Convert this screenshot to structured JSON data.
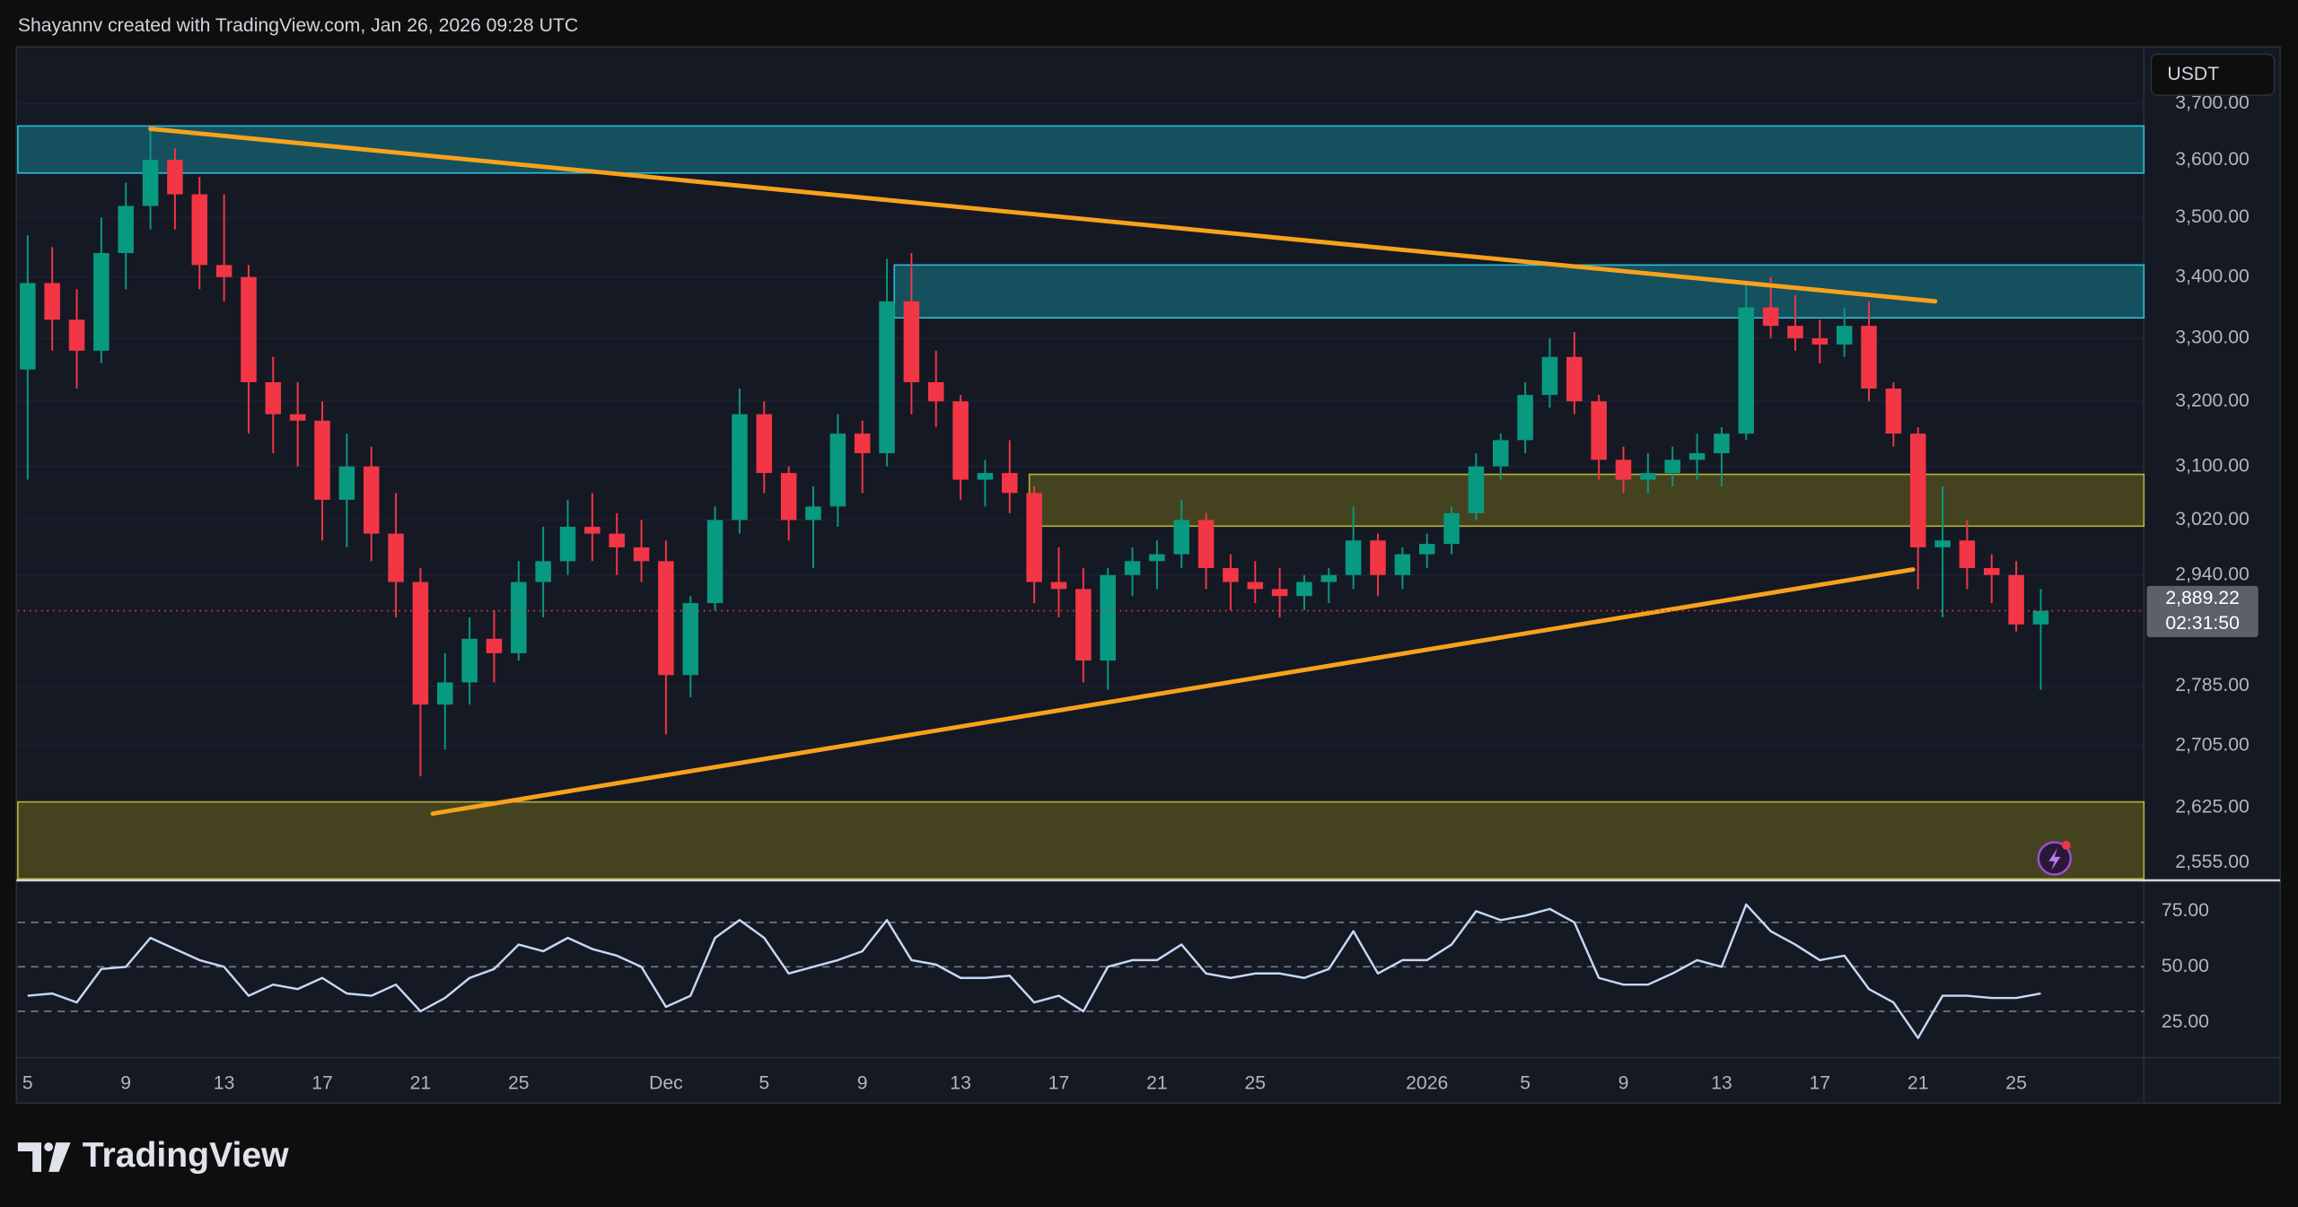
{
  "header": "Shayannv created with TradingView.com, Jan 26, 2026 09:28 UTC",
  "currency": "USDT",
  "brand": "TradingView",
  "chart_data": [
    {
      "type": "candlestick",
      "categories": [
        "5",
        null,
        null,
        null,
        "9",
        null,
        null,
        null,
        "13",
        null,
        null,
        null,
        "17",
        null,
        null,
        null,
        "21",
        null,
        null,
        null,
        "25",
        null,
        null,
        null,
        null,
        null,
        "Dec",
        null,
        null,
        null,
        "5",
        null,
        null,
        null,
        "9",
        null,
        null,
        null,
        "13",
        null,
        null,
        null,
        "17",
        null,
        null,
        null,
        "21",
        null,
        null,
        null,
        "25",
        null,
        null,
        null,
        null,
        null,
        null,
        "2026",
        null,
        null,
        null,
        "5",
        null,
        null,
        null,
        "9",
        null,
        null,
        null,
        "13",
        null,
        null,
        null,
        "17",
        null,
        null,
        null,
        "21",
        null,
        null,
        null,
        "25",
        null
      ],
      "open": [
        3250,
        3390,
        3330,
        3280,
        3440,
        3520,
        3600,
        3540,
        3420,
        3400,
        3230,
        3180,
        3170,
        3050,
        3100,
        3000,
        2930,
        2760,
        2790,
        2850,
        2830,
        2930,
        2960,
        3010,
        3000,
        2980,
        2960,
        2800,
        2900,
        3020,
        3180,
        3090,
        3020,
        3040,
        3150,
        3120,
        3360,
        3230,
        3200,
        3080,
        3090,
        3060,
        2930,
        2920,
        2820,
        2940,
        2960,
        2970,
        3020,
        2950,
        2930,
        2920,
        2910,
        2930,
        2940,
        2990,
        2940,
        2970,
        2985,
        3030,
        3100,
        3140,
        3210,
        3270,
        3200,
        3110,
        3080,
        3090,
        3110,
        3120,
        3150,
        3350,
        3320,
        3300,
        3290,
        3320,
        3220,
        3150,
        2980,
        2990,
        2950,
        2940,
        2870
      ],
      "high": [
        3470,
        3450,
        3380,
        3500,
        3560,
        3655,
        3620,
        3570,
        3540,
        3420,
        3270,
        3230,
        3200,
        3150,
        3130,
        3060,
        2950,
        2830,
        2880,
        2890,
        2960,
        3010,
        3050,
        3060,
        3030,
        3020,
        2990,
        2910,
        3040,
        3220,
        3200,
        3100,
        3070,
        3180,
        3170,
        3430,
        3440,
        3280,
        3210,
        3110,
        3140,
        3070,
        2980,
        2950,
        2950,
        2980,
        2990,
        3050,
        3030,
        2970,
        2960,
        2950,
        2940,
        2950,
        3040,
        3000,
        2980,
        3000,
        3040,
        3120,
        3150,
        3230,
        3300,
        3310,
        3210,
        3130,
        3120,
        3130,
        3150,
        3160,
        3390,
        3400,
        3370,
        3330,
        3350,
        3360,
        3230,
        3160,
        3070,
        3020,
        2970,
        2960,
        2920
      ],
      "low": [
        3080,
        3280,
        3220,
        3260,
        3380,
        3480,
        3480,
        3380,
        3360,
        3150,
        3120,
        3100,
        2990,
        2980,
        2960,
        2880,
        2665,
        2700,
        2760,
        2790,
        2820,
        2880,
        2940,
        2960,
        2940,
        2930,
        2720,
        2770,
        2890,
        3000,
        3060,
        2990,
        2950,
        3010,
        3060,
        3100,
        3180,
        3160,
        3050,
        3040,
        3030,
        2900,
        2880,
        2790,
        2780,
        2910,
        2920,
        2950,
        2920,
        2890,
        2900,
        2880,
        2890,
        2900,
        2920,
        2910,
        2920,
        2950,
        2970,
        3020,
        3080,
        3120,
        3190,
        3180,
        3080,
        3060,
        3060,
        3070,
        3080,
        3070,
        3140,
        3300,
        3280,
        3260,
        3270,
        3200,
        3130,
        2920,
        2880,
        2920,
        2900,
        2860,
        2780
      ],
      "close": [
        3390,
        3330,
        3280,
        3440,
        3520,
        3600,
        3540,
        3420,
        3400,
        3230,
        3180,
        3170,
        3050,
        3100,
        3000,
        2930,
        2760,
        2790,
        2850,
        2830,
        2930,
        2960,
        3010,
        3000,
        2980,
        2960,
        2800,
        2900,
        3020,
        3180,
        3090,
        3020,
        3040,
        3150,
        3120,
        3360,
        3230,
        3200,
        3080,
        3090,
        3060,
        2930,
        2920,
        2820,
        2940,
        2960,
        2970,
        3020,
        2950,
        2930,
        2920,
        2910,
        2930,
        2940,
        2990,
        2940,
        2970,
        2985,
        3030,
        3100,
        3140,
        3210,
        3270,
        3200,
        3110,
        3080,
        3090,
        3110,
        3120,
        3150,
        3350,
        3320,
        3300,
        3290,
        3320,
        3220,
        3150,
        2980,
        2990,
        2950,
        2940,
        2870,
        2889.22
      ],
      "up_color": "#089981",
      "down_color": "#f23645",
      "xlim": [
        -0.4,
        86.2
      ],
      "ylim": [
        2535,
        3804
      ],
      "log": true,
      "grid": true,
      "yticks": [
        {
          "value": 3700,
          "label": "3,700.00"
        },
        {
          "value": 3600,
          "label": "3,600.00"
        },
        {
          "value": 3500,
          "label": "3,500.00"
        },
        {
          "value": 3400,
          "label": "3,400.00"
        },
        {
          "value": 3300,
          "label": "3,300.00"
        },
        {
          "value": 3200,
          "label": "3,200.00"
        },
        {
          "value": 3100,
          "label": "3,100.00"
        },
        {
          "value": 3020,
          "label": "3,020.00"
        },
        {
          "value": 2940,
          "label": "2,940.00"
        },
        {
          "value": 2785,
          "label": "2,785.00"
        },
        {
          "value": 2705,
          "label": "2,705.00"
        },
        {
          "value": 2625,
          "label": "2,625.00"
        },
        {
          "value": 2555,
          "label": "2,555.00"
        }
      ],
      "last_price": {
        "value": 2889.22,
        "label": "2,889.22"
      },
      "countdown": "02:31:50",
      "zones": [
        {
          "top": 3660,
          "bottom": 3577,
          "start": -0.4,
          "fill": "#15505f",
          "stroke": "#2bbcd4"
        },
        {
          "top": 3420,
          "bottom": 3333,
          "start": 35.3,
          "fill": "#15505f",
          "stroke": "#2bbcd4"
        },
        {
          "top": 3088,
          "bottom": 3011,
          "start": 40.8,
          "fill": "#45431f",
          "stroke": "#b5b13a"
        },
        {
          "top": 2632,
          "bottom": 2535,
          "start": -0.4,
          "fill": "#45431f",
          "stroke": "#b5b13a"
        }
      ],
      "trendlines": [
        {
          "from": [
            5,
            3655
          ],
          "to": [
            77.7,
            3360
          ],
          "color": "#f7a21b"
        },
        {
          "from": [
            16.5,
            2617
          ],
          "to": [
            76.8,
            2948
          ],
          "color": "#f7a21b"
        }
      ]
    },
    {
      "type": "line",
      "values": [
        37,
        38,
        34,
        49,
        50,
        63,
        58,
        53,
        50,
        37,
        42,
        40,
        45,
        38,
        37,
        42,
        30,
        36,
        45,
        49,
        60,
        57,
        63,
        58,
        55,
        50,
        32,
        37,
        63,
        71,
        63,
        47,
        50,
        53,
        57,
        71,
        53,
        51,
        45,
        45,
        46,
        34,
        37,
        30,
        50,
        53,
        53,
        60,
        47,
        45,
        47,
        47,
        45,
        49,
        66,
        47,
        53,
        53,
        60,
        75,
        71,
        73,
        76,
        70,
        45,
        42,
        42,
        47,
        53,
        50,
        78,
        66,
        60,
        53,
        55,
        40,
        34,
        18,
        37,
        37,
        36,
        36,
        38
      ],
      "color": "#c5d8f7",
      "ylim": [
        9.2,
        88.2
      ],
      "yticks": [
        {
          "value": 75,
          "label": "75.00"
        },
        {
          "value": 50,
          "label": "50.00"
        },
        {
          "value": 25,
          "label": "25.00"
        }
      ],
      "levels": [
        70,
        50,
        30
      ]
    }
  ]
}
